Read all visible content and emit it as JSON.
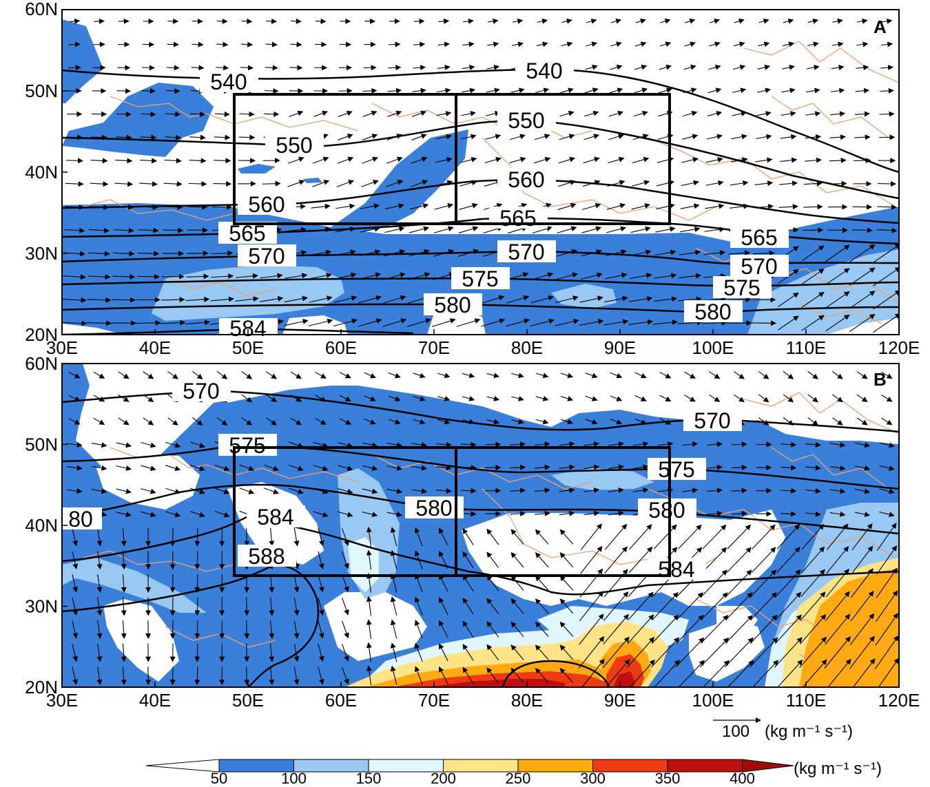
{
  "x_ticks": [
    "30E",
    "40E",
    "50E",
    "60E",
    "70E",
    "80E",
    "90E",
    "100E",
    "110E",
    "120E"
  ],
  "y_ticks": [
    "20N",
    "30N",
    "40N",
    "50N",
    "60N"
  ],
  "panels": [
    {
      "id": "A",
      "label": "A",
      "contour_labels": [
        "540",
        "540",
        "550",
        "550",
        "560",
        "560",
        "565",
        "565",
        "565",
        "570",
        "570",
        "570",
        "575",
        "575",
        "580",
        "580",
        "584"
      ]
    },
    {
      "id": "B",
      "label": "B",
      "contour_labels": [
        "570",
        "570",
        "575",
        "575",
        "80",
        "584",
        "580",
        "580",
        "588",
        "584"
      ]
    }
  ],
  "reference_vector": {
    "value": "100",
    "units": "(kg m⁻¹ s⁻¹)"
  },
  "colorbar": {
    "units": "(kg m⁻¹ s⁻¹)",
    "ticks": [
      "50",
      "100",
      "150",
      "200",
      "250",
      "300",
      "350",
      "400"
    ],
    "colors": [
      "#ffffff",
      "#3a7fd9",
      "#99c9f2",
      "#e1f6ff",
      "#ffe387",
      "#ffaa11",
      "#ee3b11",
      "#c00f0f",
      "#9e0b0b"
    ]
  },
  "colors": {
    "shade_50": "#3a7fd9",
    "shade_100": "#99c9f2",
    "shade_150": "#e1f6ff",
    "shade_200": "#ffe387",
    "shade_250": "#ffaa11",
    "shade_300": "#ee3b11",
    "shade_350": "#c00f0f",
    "border": "#f0a070"
  }
}
